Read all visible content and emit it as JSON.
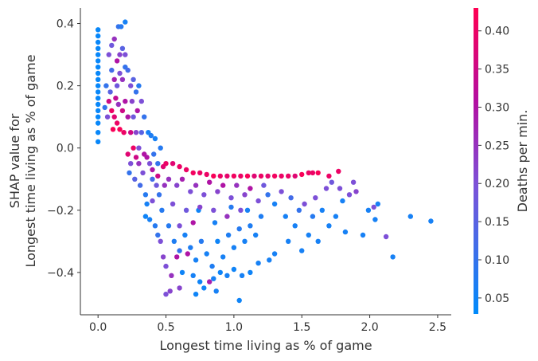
{
  "chart_data": {
    "type": "scatter",
    "title": "",
    "xlabel": "Longest time living as % of game",
    "ylabel_lines": [
      "SHAP value for",
      "Longest time living as % of game"
    ],
    "xlim": [
      -0.13,
      2.6
    ],
    "ylim": [
      -0.536,
      0.45
    ],
    "xticks": [
      0.0,
      0.5,
      1.0,
      1.5,
      2.0,
      2.5
    ],
    "xtick_labels": [
      "0.0",
      "0.5",
      "1.0",
      "1.5",
      "2.0",
      "2.5"
    ],
    "yticks": [
      0.4,
      0.2,
      0.0,
      -0.2,
      -0.4
    ],
    "ytick_labels": [
      "0.4",
      "0.2",
      "0.0",
      "−0.2",
      "−0.4"
    ],
    "grid": false,
    "colorbar": {
      "label": "Deaths per min.",
      "range": [
        0.029,
        0.43
      ],
      "ticks": [
        0.05,
        0.1,
        0.15,
        0.2,
        0.25,
        0.3,
        0.35,
        0.4
      ],
      "tick_labels": [
        "0.05",
        "0.10",
        "0.15",
        "0.20",
        "0.25",
        "0.30",
        "0.35",
        "0.40"
      ],
      "colors": [
        "#008bfb",
        "#7c52d8",
        "#b40ea0",
        "#ff0052"
      ]
    },
    "points_fields": [
      "x",
      "shap_value",
      "deaths_per_min"
    ],
    "points": [
      [
        0,
        0.02,
        0.04
      ],
      [
        0,
        0.05,
        0.04
      ],
      [
        0,
        0.08,
        0.04
      ],
      [
        0,
        0.1,
        0.04
      ],
      [
        0,
        0.12,
        0.04
      ],
      [
        0,
        0.14,
        0.04
      ],
      [
        0,
        0.16,
        0.04
      ],
      [
        0,
        0.18,
        0.04
      ],
      [
        0,
        0.2,
        0.04
      ],
      [
        0,
        0.22,
        0.04
      ],
      [
        0,
        0.24,
        0.04
      ],
      [
        0,
        0.26,
        0.04
      ],
      [
        0,
        0.28,
        0.04
      ],
      [
        0,
        0.3,
        0.04
      ],
      [
        0,
        0.32,
        0.04
      ],
      [
        0,
        0.34,
        0.04
      ],
      [
        0,
        0.36,
        0.04
      ],
      [
        0,
        0.38,
        0.04
      ],
      [
        0.08,
        0.3,
        0.2
      ],
      [
        0.1,
        0.33,
        0.18
      ],
      [
        0.12,
        0.35,
        0.25
      ],
      [
        0.15,
        0.39,
        0.1
      ],
      [
        0.17,
        0.39,
        0.08
      ],
      [
        0.2,
        0.405,
        0.06
      ],
      [
        0.14,
        0.28,
        0.3
      ],
      [
        0.16,
        0.3,
        0.22
      ],
      [
        0.18,
        0.32,
        0.15
      ],
      [
        0.2,
        0.3,
        0.2
      ],
      [
        0.1,
        0.25,
        0.12
      ],
      [
        0.12,
        0.22,
        0.28
      ],
      [
        0.14,
        0.2,
        0.18
      ],
      [
        0.16,
        0.24,
        0.2
      ],
      [
        0.18,
        0.22,
        0.25
      ],
      [
        0.2,
        0.26,
        0.1
      ],
      [
        0.06,
        0.2,
        0.1
      ],
      [
        0.08,
        0.15,
        0.35
      ],
      [
        0.1,
        0.12,
        0.4
      ],
      [
        0.12,
        0.1,
        0.38
      ],
      [
        0.14,
        0.08,
        0.4
      ],
      [
        0.16,
        0.06,
        0.42
      ],
      [
        0.18,
        0.12,
        0.35
      ],
      [
        0.2,
        0.15,
        0.3
      ],
      [
        0.07,
        0.1,
        0.2
      ],
      [
        0.09,
        0.18,
        0.15
      ],
      [
        0.11,
        0.06,
        0.42
      ],
      [
        0.15,
        0.14,
        0.25
      ],
      [
        0.19,
        0.05,
        0.4
      ],
      [
        0.05,
        0.13,
        0.1
      ],
      [
        0.13,
        0.16,
        0.33
      ],
      [
        0.22,
        0.25,
        0.12
      ],
      [
        0.24,
        0.2,
        0.2
      ],
      [
        0.26,
        0.22,
        0.15
      ],
      [
        0.28,
        0.18,
        0.1
      ],
      [
        0.3,
        0.2,
        0.08
      ],
      [
        0.32,
        0.15,
        0.2
      ],
      [
        0.34,
        0.1,
        0.1
      ],
      [
        0.22,
        0.1,
        0.3
      ],
      [
        0.24,
        0.05,
        0.35
      ],
      [
        0.26,
        0.1,
        0.18
      ],
      [
        0.28,
        0.05,
        0.22
      ],
      [
        0.3,
        0.0,
        0.2
      ],
      [
        0.32,
        0.05,
        0.15
      ],
      [
        0.34,
        -0.02,
        0.3
      ],
      [
        0.22,
        -0.02,
        0.38
      ],
      [
        0.24,
        -0.05,
        0.2
      ],
      [
        0.26,
        0.0,
        0.4
      ],
      [
        0.28,
        -0.03,
        0.35
      ],
      [
        0.3,
        -0.05,
        0.25
      ],
      [
        0.23,
        -0.08,
        0.1
      ],
      [
        0.27,
        -0.1,
        0.15
      ],
      [
        0.31,
        -0.12,
        0.12
      ],
      [
        0.33,
        -0.08,
        0.2
      ],
      [
        0.35,
        -0.15,
        0.08
      ],
      [
        0.25,
        0.15,
        0.22
      ],
      [
        0.29,
        0.12,
        0.3
      ],
      [
        0.37,
        0.05,
        0.06
      ],
      [
        0.39,
        0.04,
        0.07
      ],
      [
        0.42,
        0.03,
        0.06
      ],
      [
        0.41,
        -0.02,
        0.1
      ],
      [
        0.44,
        -0.05,
        0.1
      ],
      [
        0.46,
        0.0,
        0.08
      ],
      [
        0.38,
        -0.05,
        0.2
      ],
      [
        0.4,
        -0.1,
        0.12
      ],
      [
        0.43,
        -0.12,
        0.18
      ],
      [
        0.45,
        -0.15,
        0.1
      ],
      [
        0.47,
        -0.2,
        0.08
      ],
      [
        0.36,
        -0.18,
        0.06
      ],
      [
        0.38,
        -0.23,
        0.06
      ],
      [
        0.4,
        -0.17,
        0.2
      ],
      [
        0.42,
        -0.25,
        0.08
      ],
      [
        0.44,
        -0.28,
        0.1
      ],
      [
        0.46,
        -0.3,
        0.2
      ],
      [
        0.48,
        -0.35,
        0.22
      ],
      [
        0.5,
        -0.38,
        0.2
      ],
      [
        0.36,
        -0.03,
        0.3
      ],
      [
        0.4,
        -0.07,
        0.3
      ],
      [
        0.44,
        -0.09,
        0.35
      ],
      [
        0.48,
        -0.06,
        0.38
      ],
      [
        0.49,
        -0.12,
        0.25
      ],
      [
        0.35,
        -0.22,
        0.05
      ],
      [
        0.52,
        -0.25,
        0.08
      ],
      [
        0.56,
        -0.3,
        0.07
      ],
      [
        0.6,
        -0.33,
        0.1
      ],
      [
        0.64,
        -0.28,
        0.06
      ],
      [
        0.68,
        -0.32,
        0.07
      ],
      [
        0.72,
        -0.36,
        0.06
      ],
      [
        0.76,
        -0.3,
        0.08
      ],
      [
        0.8,
        -0.34,
        0.06
      ],
      [
        0.84,
        -0.38,
        0.07
      ],
      [
        0.88,
        -0.3,
        0.05
      ],
      [
        0.92,
        -0.35,
        0.06
      ],
      [
        0.96,
        -0.28,
        0.07
      ],
      [
        1.0,
        -0.32,
        0.06
      ],
      [
        1.04,
        -0.26,
        0.08
      ],
      [
        1.08,
        -0.3,
        0.06
      ],
      [
        1.12,
        -0.25,
        0.07
      ],
      [
        1.16,
        -0.28,
        0.06
      ],
      [
        1.2,
        -0.22,
        0.07
      ],
      [
        0.62,
        -0.4,
        0.05
      ],
      [
        0.7,
        -0.41,
        0.06
      ],
      [
        0.75,
        -0.43,
        0.05
      ],
      [
        0.78,
        -0.45,
        0.05
      ],
      [
        0.85,
        -0.42,
        0.06
      ],
      [
        0.9,
        -0.4,
        0.05
      ],
      [
        0.95,
        -0.41,
        0.06
      ],
      [
        1.0,
        -0.39,
        0.05
      ],
      [
        1.06,
        -0.41,
        0.06
      ],
      [
        1.12,
        -0.4,
        0.05
      ],
      [
        1.18,
        -0.37,
        0.06
      ],
      [
        1.26,
        -0.36,
        0.06
      ],
      [
        1.04,
        -0.49,
        0.05
      ],
      [
        0.87,
        -0.46,
        0.06
      ],
      [
        0.72,
        -0.47,
        0.05
      ],
      [
        0.58,
        -0.35,
        0.3
      ],
      [
        0.54,
        -0.41,
        0.25
      ],
      [
        0.6,
        -0.45,
        0.22
      ],
      [
        0.5,
        -0.47,
        0.2
      ],
      [
        0.53,
        -0.46,
        0.22
      ],
      [
        0.82,
        -0.43,
        0.28
      ],
      [
        0.66,
        -0.34,
        0.3
      ],
      [
        0.74,
        -0.2,
        0.05
      ],
      [
        0.86,
        -0.24,
        0.06
      ],
      [
        0.98,
        -0.19,
        0.08
      ],
      [
        1.1,
        -0.2,
        0.06
      ],
      [
        0.52,
        -0.1,
        0.25
      ],
      [
        0.58,
        -0.12,
        0.22
      ],
      [
        0.62,
        -0.1,
        0.28
      ],
      [
        0.68,
        -0.14,
        0.2
      ],
      [
        0.72,
        -0.12,
        0.25
      ],
      [
        0.78,
        -0.15,
        0.2
      ],
      [
        0.82,
        -0.11,
        0.3
      ],
      [
        0.88,
        -0.14,
        0.22
      ],
      [
        0.92,
        -0.12,
        0.3
      ],
      [
        0.98,
        -0.16,
        0.2
      ],
      [
        1.02,
        -0.12,
        0.25
      ],
      [
        1.08,
        -0.15,
        0.22
      ],
      [
        1.12,
        -0.13,
        0.3
      ],
      [
        1.18,
        -0.17,
        0.2
      ],
      [
        1.22,
        -0.12,
        0.18
      ],
      [
        0.55,
        -0.18,
        0.2
      ],
      [
        0.65,
        -0.2,
        0.18
      ],
      [
        0.75,
        -0.19,
        0.22
      ],
      [
        0.85,
        -0.2,
        0.2
      ],
      [
        0.95,
        -0.22,
        0.25
      ],
      [
        1.05,
        -0.2,
        0.2
      ],
      [
        0.6,
        -0.25,
        0.2
      ],
      [
        0.7,
        -0.24,
        0.3
      ],
      [
        0.5,
        -0.05,
        0.4
      ],
      [
        0.55,
        -0.05,
        0.38
      ],
      [
        0.6,
        -0.06,
        0.4
      ],
      [
        0.65,
        -0.07,
        0.4
      ],
      [
        0.7,
        -0.08,
        0.41
      ],
      [
        0.75,
        -0.08,
        0.4
      ],
      [
        0.8,
        -0.085,
        0.4
      ],
      [
        0.85,
        -0.09,
        0.42
      ],
      [
        0.9,
        -0.09,
        0.4
      ],
      [
        0.95,
        -0.09,
        0.39
      ],
      [
        1.0,
        -0.09,
        0.41
      ],
      [
        1.05,
        -0.09,
        0.4
      ],
      [
        1.1,
        -0.09,
        0.42
      ],
      [
        1.15,
        -0.09,
        0.38
      ],
      [
        1.2,
        -0.09,
        0.4
      ],
      [
        1.25,
        -0.09,
        0.39
      ],
      [
        1.3,
        -0.09,
        0.41
      ],
      [
        1.35,
        -0.09,
        0.4
      ],
      [
        1.4,
        -0.09,
        0.4
      ],
      [
        1.45,
        -0.09,
        0.38
      ],
      [
        1.5,
        -0.085,
        0.42
      ],
      [
        1.55,
        -0.08,
        0.4
      ],
      [
        1.25,
        -0.15,
        0.1
      ],
      [
        1.3,
        -0.18,
        0.06
      ],
      [
        1.35,
        -0.14,
        0.2
      ],
      [
        1.38,
        -0.22,
        0.06
      ],
      [
        1.42,
        -0.16,
        0.12
      ],
      [
        1.45,
        -0.25,
        0.06
      ],
      [
        1.48,
        -0.2,
        0.1
      ],
      [
        1.52,
        -0.18,
        0.2
      ],
      [
        1.55,
        -0.28,
        0.06
      ],
      [
        1.58,
        -0.22,
        0.08
      ],
      [
        1.6,
        -0.16,
        0.2
      ],
      [
        1.62,
        -0.3,
        0.06
      ],
      [
        1.65,
        -0.2,
        0.06
      ],
      [
        1.68,
        -0.13,
        0.2
      ],
      [
        1.7,
        -0.25,
        0.06
      ],
      [
        1.72,
        -0.11,
        0.18
      ],
      [
        1.75,
        -0.22,
        0.06
      ],
      [
        1.78,
        -0.13,
        0.2
      ],
      [
        1.8,
        -0.17,
        0.06
      ],
      [
        1.85,
        -0.15,
        0.2
      ],
      [
        1.4,
        -0.3,
        0.06
      ],
      [
        1.5,
        -0.33,
        0.06
      ],
      [
        1.3,
        -0.34,
        0.06
      ],
      [
        1.58,
        -0.08,
        0.4
      ],
      [
        1.62,
        -0.08,
        0.42
      ],
      [
        1.7,
        -0.09,
        0.4
      ],
      [
        1.77,
        -0.075,
        0.4
      ],
      [
        1.88,
        -0.11,
        0.2
      ],
      [
        1.9,
        -0.14,
        0.22
      ],
      [
        1.82,
        -0.27,
        0.06
      ],
      [
        1.95,
        -0.28,
        0.06
      ],
      [
        1.99,
        -0.2,
        0.06
      ],
      [
        2.03,
        -0.19,
        0.2
      ],
      [
        2.06,
        -0.18,
        0.06
      ],
      [
        2.12,
        -0.285,
        0.2
      ],
      [
        2.17,
        -0.35,
        0.06
      ],
      [
        2.3,
        -0.22,
        0.06
      ],
      [
        2.45,
        -0.235,
        0.06
      ],
      [
        2.04,
        -0.23,
        0.06
      ]
    ]
  }
}
